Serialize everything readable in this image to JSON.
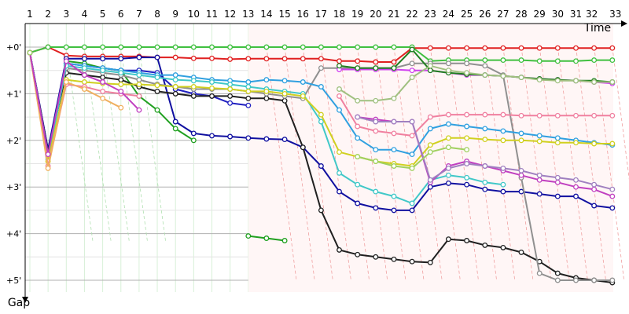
{
  "chart_data": {
    "type": "line",
    "title": "",
    "xlabel": "Time",
    "ylabel": "Gap",
    "x_ticks": [
      "1",
      "2",
      "3",
      "4",
      "5",
      "6",
      "7",
      "8",
      "9",
      "10",
      "11",
      "12",
      "13",
      "14",
      "15",
      "16",
      "17",
      "18",
      "19",
      "20",
      "21",
      "22",
      "23",
      "24",
      "25",
      "26",
      "27",
      "28",
      "29",
      "30",
      "31",
      "32",
      "33"
    ],
    "y_ticks": [
      "+0'",
      "+1'",
      "+2'",
      "+3'",
      "+4'",
      "+5'"
    ],
    "y_unit": "minutes",
    "xlim": [
      1,
      33
    ],
    "ylim": [
      0,
      5
    ],
    "legend": "none",
    "series": [
      {
        "color": "#e02020",
        "values": [
          0.12,
          0.0,
          0.18,
          0.2,
          0.2,
          0.2,
          0.2,
          0.22,
          0.22,
          0.24,
          0.24,
          0.26,
          0.25,
          0.25,
          0.25,
          0.25,
          0.25,
          0.3,
          0.3,
          0.32,
          0.32,
          0.02,
          0.02,
          0.02,
          0.02,
          0.02,
          0.02,
          0.02,
          0.02,
          0.02,
          0.02,
          0.02,
          0.02
        ]
      },
      {
        "color": "#40c040",
        "values": [
          0.12,
          0.0,
          0.0,
          0.0,
          0.0,
          0.0,
          0.0,
          0.0,
          0.0,
          0.0,
          0.0,
          0.0,
          0.0,
          0.0,
          0.0,
          0.0,
          0.0,
          0.0,
          0.0,
          0.0,
          0.0,
          0.0,
          0.3,
          0.28,
          0.28,
          0.28,
          0.28,
          0.28,
          0.3,
          0.3,
          0.3,
          0.28,
          0.28
        ]
      },
      {
        "color": "#20a020",
        "values": [
          0.12,
          2.3,
          0.3,
          0.35,
          0.45,
          0.5,
          1.05,
          1.35,
          1.75,
          2.0,
          null,
          null,
          4.05,
          4.1,
          4.15,
          null,
          null,
          null,
          null,
          null,
          null,
          null,
          null,
          null,
          null,
          null,
          null,
          null,
          null,
          null,
          null,
          null,
          null
        ]
      },
      {
        "color": "#2020c0",
        "values": [
          0.12,
          2.2,
          0.35,
          0.4,
          0.45,
          0.5,
          0.5,
          0.55,
          0.9,
          1.0,
          1.05,
          1.2,
          1.25,
          null,
          null,
          null,
          null,
          null,
          null,
          null,
          null,
          null,
          null,
          null,
          null,
          null,
          null,
          null,
          null,
          null,
          null,
          null,
          null
        ]
      },
      {
        "color": "#1010a0",
        "values": [
          0.12,
          2.2,
          0.25,
          0.25,
          0.25,
          0.25,
          0.22,
          0.22,
          1.6,
          1.85,
          1.9,
          1.92,
          1.95,
          1.97,
          1.98,
          2.15,
          2.55,
          3.1,
          3.35,
          3.45,
          3.5,
          3.5,
          3.0,
          2.92,
          2.95,
          3.05,
          3.1,
          3.1,
          3.15,
          3.2,
          3.2,
          3.4,
          3.45
        ]
      },
      {
        "color": "#202020",
        "values": [
          0.12,
          2.25,
          0.55,
          0.6,
          0.65,
          0.7,
          0.85,
          0.95,
          1.0,
          1.05,
          1.05,
          1.05,
          1.1,
          1.1,
          1.15,
          2.15,
          3.5,
          4.35,
          4.45,
          4.5,
          4.55,
          4.6,
          4.62,
          4.12,
          4.15,
          4.25,
          4.3,
          4.4,
          4.6,
          4.85,
          4.95,
          5.0,
          5.05
        ]
      },
      {
        "color": "#909090",
        "values": [
          0.12,
          2.3,
          0.45,
          0.5,
          0.55,
          0.6,
          0.7,
          0.8,
          0.85,
          0.9,
          0.9,
          0.9,
          0.95,
          1.0,
          1.05,
          1.1,
          0.45,
          0.45,
          0.45,
          0.45,
          0.45,
          0.35,
          0.35,
          0.35,
          0.35,
          0.4,
          0.6,
          2.8,
          4.85,
          5.0,
          5.0,
          5.0,
          5.0
        ]
      },
      {
        "color": "#30a0e0",
        "values": [
          0.12,
          2.35,
          0.35,
          0.4,
          0.45,
          0.5,
          0.55,
          0.6,
          0.6,
          0.65,
          0.7,
          0.72,
          0.75,
          0.7,
          0.72,
          0.75,
          0.85,
          1.35,
          1.95,
          2.2,
          2.2,
          2.3,
          1.75,
          1.65,
          1.7,
          1.75,
          1.8,
          1.85,
          1.9,
          1.95,
          2.0,
          2.05,
          2.1
        ]
      },
      {
        "color": "#40c8c8",
        "values": [
          0.12,
          2.4,
          0.4,
          0.45,
          0.5,
          0.55,
          0.6,
          0.65,
          0.7,
          0.72,
          0.75,
          0.8,
          0.85,
          0.9,
          0.95,
          1.0,
          1.6,
          2.7,
          2.95,
          3.1,
          3.2,
          3.35,
          2.85,
          2.75,
          2.8,
          2.9,
          2.95,
          null,
          null,
          null,
          null,
          null,
          null
        ]
      },
      {
        "color": "#d0d020",
        "values": [
          0.12,
          2.45,
          0.7,
          0.75,
          0.78,
          0.8,
          0.8,
          0.82,
          0.85,
          0.85,
          0.88,
          0.9,
          0.95,
          0.95,
          1.0,
          1.05,
          1.45,
          2.25,
          2.35,
          2.45,
          2.5,
          2.55,
          2.1,
          1.95,
          1.95,
          1.98,
          2.0,
          2.0,
          2.02,
          2.05,
          2.05,
          2.07,
          2.07
        ]
      },
      {
        "color": "#f080a0",
        "values": [
          0.12,
          2.55,
          0.8,
          0.85,
          0.95,
          1.0,
          1.05,
          null,
          null,
          null,
          null,
          null,
          null,
          null,
          null,
          null,
          null,
          1.05,
          1.7,
          1.8,
          1.85,
          1.9,
          1.5,
          1.45,
          1.45,
          1.45,
          1.45,
          1.47,
          1.47,
          1.47,
          1.47,
          1.47,
          1.47
        ]
      },
      {
        "color": "#f0b060",
        "values": [
          0.12,
          2.6,
          0.75,
          0.9,
          1.1,
          1.3,
          null,
          null,
          null,
          null,
          null,
          null,
          null,
          null,
          null,
          null,
          null,
          null,
          null,
          null,
          null,
          null,
          null,
          null,
          null,
          null,
          null,
          null,
          null,
          null,
          null,
          null,
          null
        ]
      },
      {
        "color": "#c040c0",
        "values": [
          0.12,
          2.3,
          0.3,
          0.6,
          0.75,
          0.95,
          1.35,
          null,
          null,
          null,
          null,
          null,
          null,
          null,
          null,
          null,
          null,
          null,
          1.5,
          1.55,
          1.6,
          1.6,
          2.9,
          2.55,
          2.45,
          2.55,
          2.65,
          2.75,
          2.85,
          2.9,
          3.0,
          3.05,
          3.2
        ]
      },
      {
        "color": "#d040f0",
        "values": [
          0.12,
          null,
          null,
          null,
          null,
          null,
          null,
          null,
          null,
          null,
          null,
          null,
          null,
          null,
          null,
          null,
          null,
          0.48,
          0.48,
          0.48,
          0.48,
          0.5,
          0.5,
          0.55,
          0.6,
          0.6,
          0.62,
          0.65,
          0.68,
          0.7,
          0.72,
          0.75,
          0.78
        ]
      },
      {
        "color": "#208020",
        "values": [
          0.12,
          null,
          null,
          null,
          null,
          null,
          null,
          null,
          null,
          null,
          null,
          null,
          null,
          null,
          null,
          null,
          null,
          0.4,
          0.45,
          0.45,
          0.45,
          0.05,
          0.5,
          0.55,
          0.58,
          0.6,
          0.62,
          0.65,
          0.68,
          0.7,
          0.72,
          0.72,
          0.75
        ]
      },
      {
        "color": "#a0c080",
        "values": [
          0.12,
          null,
          null,
          null,
          null,
          null,
          null,
          null,
          null,
          null,
          null,
          null,
          null,
          null,
          null,
          null,
          null,
          0.9,
          1.15,
          1.15,
          1.1,
          0.65,
          0.4,
          0.5,
          0.55,
          0.6,
          0.62,
          0.65,
          0.7,
          0.72,
          0.72,
          0.75,
          0.75
        ]
      },
      {
        "color": "#a080c0",
        "values": [
          0.12,
          null,
          null,
          null,
          null,
          null,
          null,
          null,
          null,
          null,
          null,
          null,
          null,
          null,
          null,
          null,
          null,
          null,
          1.5,
          1.6,
          1.6,
          1.6,
          2.85,
          2.6,
          2.5,
          2.55,
          2.6,
          2.65,
          2.75,
          2.8,
          2.85,
          2.95,
          3.05
        ]
      },
      {
        "color": "#a0d060",
        "values": [
          0.12,
          null,
          null,
          null,
          null,
          null,
          null,
          null,
          null,
          null,
          null,
          null,
          null,
          null,
          null,
          null,
          null,
          null,
          2.35,
          2.45,
          2.55,
          2.6,
          2.25,
          2.15,
          2.2,
          null,
          null,
          null,
          null,
          null,
          null,
          null,
          null
        ]
      }
    ]
  }
}
